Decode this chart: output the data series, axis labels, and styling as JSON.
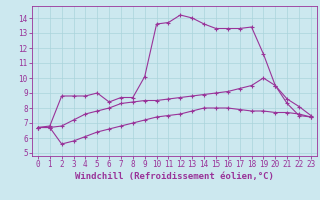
{
  "xlabel": "Windchill (Refroidissement éolien,°C)",
  "bg_color": "#cce8ef",
  "line_color": "#993399",
  "xlim": [
    -0.5,
    23.5
  ],
  "ylim": [
    4.8,
    14.8
  ],
  "xticks": [
    0,
    1,
    2,
    3,
    4,
    5,
    6,
    7,
    8,
    9,
    10,
    11,
    12,
    13,
    14,
    15,
    16,
    17,
    18,
    19,
    20,
    21,
    22,
    23
  ],
  "yticks": [
    5,
    6,
    7,
    8,
    9,
    10,
    11,
    12,
    13,
    14
  ],
  "line1_x": [
    0,
    1,
    2,
    3,
    4,
    5,
    6,
    7,
    8,
    9,
    10,
    11,
    12,
    13,
    14,
    15,
    16,
    17,
    18,
    19,
    20,
    21,
    22,
    23
  ],
  "line1_y": [
    6.7,
    6.8,
    8.8,
    8.8,
    8.8,
    9.0,
    8.4,
    8.7,
    8.7,
    10.1,
    13.6,
    13.7,
    14.2,
    14.0,
    13.6,
    13.3,
    13.3,
    13.3,
    13.4,
    11.6,
    9.5,
    8.3,
    7.5,
    7.4
  ],
  "line2_x": [
    0,
    1,
    2,
    3,
    4,
    5,
    6,
    7,
    8,
    9,
    10,
    11,
    12,
    13,
    14,
    15,
    16,
    17,
    18,
    19,
    20,
    21,
    22,
    23
  ],
  "line2_y": [
    6.7,
    6.7,
    6.8,
    7.2,
    7.6,
    7.8,
    8.0,
    8.3,
    8.4,
    8.5,
    8.5,
    8.6,
    8.7,
    8.8,
    8.9,
    9.0,
    9.1,
    9.3,
    9.5,
    10.0,
    9.5,
    8.6,
    8.1,
    7.5
  ],
  "line3_x": [
    0,
    1,
    2,
    3,
    4,
    5,
    6,
    7,
    8,
    9,
    10,
    11,
    12,
    13,
    14,
    15,
    16,
    17,
    18,
    19,
    20,
    21,
    22,
    23
  ],
  "line3_y": [
    6.7,
    6.7,
    5.6,
    5.8,
    6.1,
    6.4,
    6.6,
    6.8,
    7.0,
    7.2,
    7.4,
    7.5,
    7.6,
    7.8,
    8.0,
    8.0,
    8.0,
    7.9,
    7.8,
    7.8,
    7.7,
    7.7,
    7.6,
    7.4
  ],
  "grid_color": "#aad4dc",
  "xlabel_fontsize": 6.5,
  "tick_fontsize": 5.5
}
